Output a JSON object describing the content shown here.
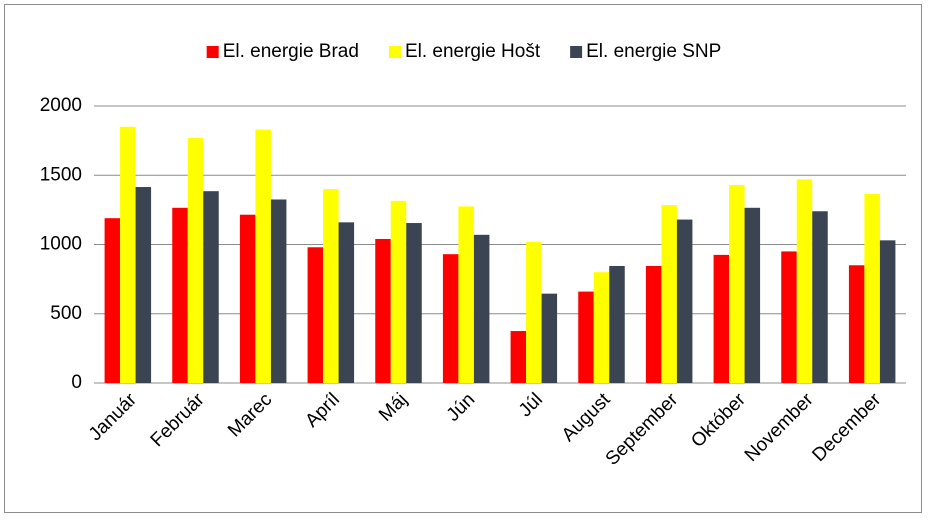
{
  "chart_data": {
    "type": "bar",
    "categories": [
      "Január",
      "Február",
      "Marec",
      "Apríl",
      "Máj",
      "Jún",
      "Júl",
      "August",
      "September",
      "Október",
      "November",
      "December"
    ],
    "series": [
      {
        "name": "El. energie Brad",
        "color": "#ff0000",
        "values": [
          1190,
          1265,
          1215,
          980,
          1040,
          930,
          375,
          660,
          845,
          925,
          950,
          850
        ]
      },
      {
        "name": "El. energie Hošt",
        "color": "#ffff00",
        "values": [
          1850,
          1770,
          1830,
          1400,
          1315,
          1275,
          1020,
          800,
          1285,
          1430,
          1470,
          1365
        ]
      },
      {
        "name": "El. energie SNP",
        "color": "#3b4453",
        "values": [
          1415,
          1385,
          1325,
          1160,
          1155,
          1070,
          645,
          845,
          1180,
          1265,
          1240,
          1030
        ]
      }
    ],
    "ylim": [
      0,
      2000
    ],
    "yticks": [
      0,
      500,
      1000,
      1500,
      2000
    ],
    "grid": true,
    "legend": "top"
  }
}
